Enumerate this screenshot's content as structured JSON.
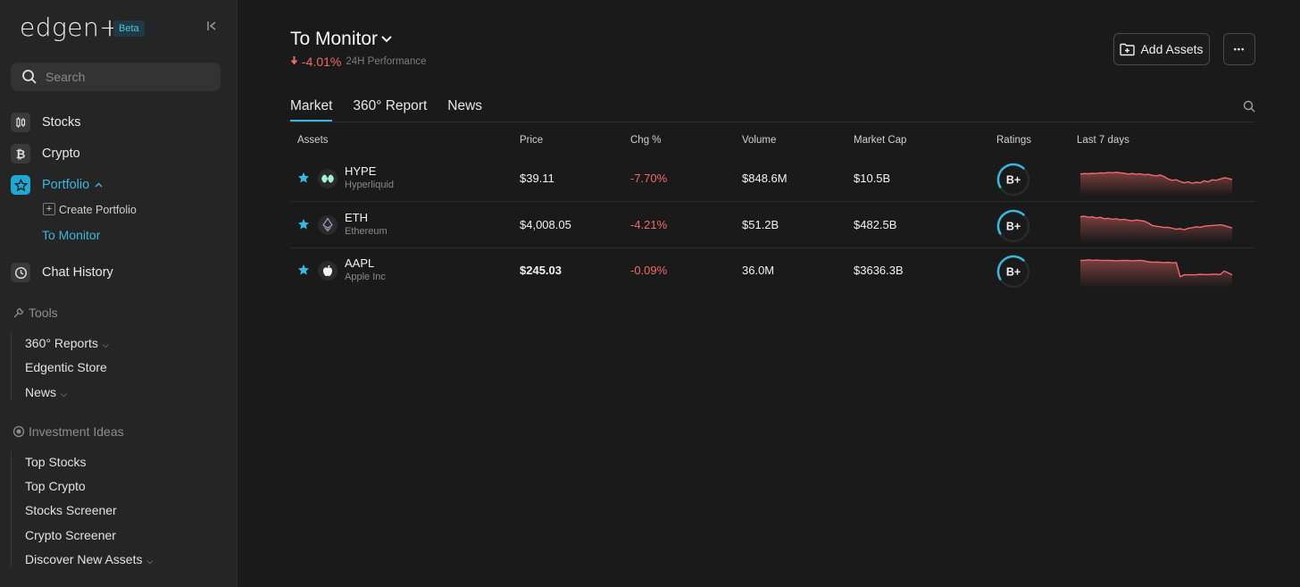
{
  "brand": {
    "logo": "edgen+",
    "badge": "Beta"
  },
  "sidebar": {
    "search_placeholder": "Search",
    "nav": [
      {
        "label": "Stocks",
        "icon": "candlestick-icon"
      },
      {
        "label": "Crypto",
        "icon": "bitcoin-icon"
      },
      {
        "label": "Portfolio",
        "icon": "star-icon"
      }
    ],
    "portfolio_sub": {
      "create": "Create Portfolio",
      "selected": "To Monitor"
    },
    "chat_history": "Chat History",
    "tools_header": "Tools",
    "tools": [
      "360° Reports",
      "Edgentic Store",
      "News"
    ],
    "ideas_header": "Investment Ideas",
    "ideas": [
      "Top Stocks",
      "Top Crypto",
      "Stocks Screener",
      "Crypto Screener",
      "Discover New Assets"
    ]
  },
  "header": {
    "title": "To Monitor",
    "performance": "-4.01%",
    "performance_label": "24H Performance",
    "add_assets": "Add Assets",
    "more": "•••"
  },
  "tabs": [
    "Market",
    "360° Report",
    "News"
  ],
  "table": {
    "columns": [
      "Assets",
      "Price",
      "Chg %",
      "Volume",
      "Market Cap",
      "Ratings",
      "Last 7 days"
    ],
    "rows": [
      {
        "symbol": "HYPE",
        "name": "Hyperliquid",
        "price": "$39.11",
        "change": "-7.70%",
        "volume": "$848.6M",
        "market_cap": "$10.5B",
        "rating": "B+",
        "rating_fill": 0.45,
        "icon": "hyperliquid-icon",
        "spark": [
          0.35,
          0.33,
          0.34,
          0.32,
          0.33,
          0.3,
          0.31,
          0.29,
          0.3,
          0.28,
          0.3,
          0.32,
          0.35,
          0.33,
          0.36,
          0.34,
          0.38,
          0.36,
          0.4,
          0.42,
          0.39,
          0.45,
          0.55,
          0.6,
          0.58,
          0.65,
          0.7,
          0.66,
          0.72,
          0.68,
          0.7,
          0.62,
          0.66,
          0.58,
          0.6,
          0.55,
          0.5,
          0.52,
          0.58
        ]
      },
      {
        "symbol": "ETH",
        "name": "Ethereum",
        "price": "$4,008.05",
        "change": "-4.21%",
        "volume": "$51.2B",
        "market_cap": "$482.5B",
        "rating": "B+",
        "rating_fill": 0.45,
        "icon": "ethereum-icon",
        "spark": [
          0.2,
          0.18,
          0.22,
          0.2,
          0.25,
          0.22,
          0.28,
          0.26,
          0.3,
          0.28,
          0.32,
          0.3,
          0.34,
          0.36,
          0.33,
          0.35,
          0.38,
          0.45,
          0.55,
          0.58,
          0.6,
          0.63,
          0.62,
          0.66,
          0.7,
          0.68,
          0.72,
          0.66,
          0.64,
          0.6,
          0.62,
          0.58,
          0.56,
          0.55,
          0.54,
          0.52,
          0.55,
          0.6,
          0.65
        ]
      },
      {
        "symbol": "AAPL",
        "name": "Apple Inc",
        "price": "$245.03",
        "change": "-0.09%",
        "volume": "36.0M",
        "market_cap": "$3636.3B",
        "rating": "B+",
        "rating_fill": 0.45,
        "icon": "apple-icon",
        "spark": [
          0.12,
          0.12,
          0.1,
          0.12,
          0.11,
          0.12,
          0.12,
          0.12,
          0.13,
          0.14,
          0.13,
          0.12,
          0.13,
          0.14,
          0.13,
          0.12,
          0.14,
          0.18,
          0.2,
          0.19,
          0.2,
          0.21,
          0.2,
          0.22,
          0.21,
          0.78,
          0.7,
          0.7,
          0.7,
          0.7,
          0.68,
          0.69,
          0.69,
          0.68,
          0.68,
          0.69,
          0.55,
          0.62,
          0.7
        ]
      }
    ]
  },
  "colors": {
    "accent": "#37b8e0",
    "negative": "#f06a6a",
    "background": "#1a1a1a",
    "sidebar": "#252525"
  }
}
